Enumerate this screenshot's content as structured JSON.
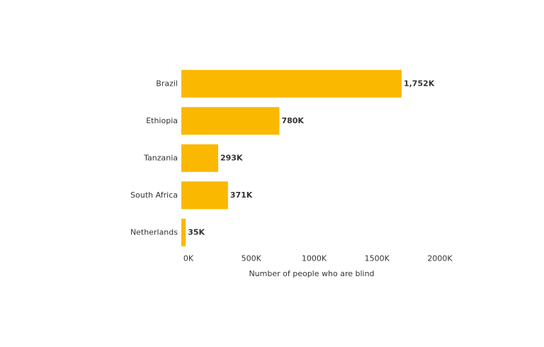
{
  "chart_data": {
    "type": "barh",
    "categories": [
      "Brazil",
      "Ethiopia",
      "Tanzania",
      "South Africa",
      "Netherlands"
    ],
    "values": [
      1752,
      780,
      293,
      371,
      35
    ],
    "value_labels": [
      "1,752K",
      "780K",
      "293K",
      "371K",
      "35K"
    ],
    "color": "#fbb800",
    "xlim": [
      0,
      2000
    ],
    "xticks": [
      {
        "value": 0,
        "label": "0K"
      },
      {
        "value": 500,
        "label": "500K"
      },
      {
        "value": 1000,
        "label": "1000K"
      },
      {
        "value": 1500,
        "label": "1500K"
      },
      {
        "value": 2000,
        "label": "2000K"
      }
    ],
    "xlabel": "Number of people who are blind",
    "grid": false
  }
}
